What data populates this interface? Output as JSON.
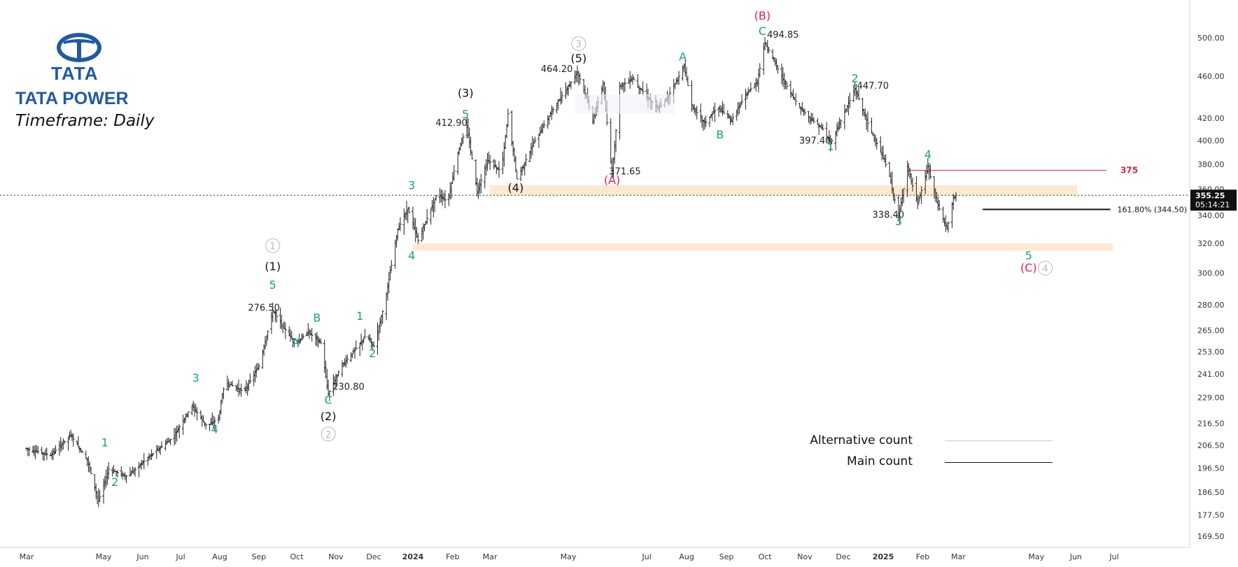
{
  "brand": {
    "logo_text": "TATA",
    "name": "TATA POWER",
    "timeframe": "Timeframe: Daily"
  },
  "colors": {
    "wave_teal": "#1a9c8c",
    "wave_red": "#e0224a",
    "wave_black": "#111111",
    "wave_grey": "#b8b8b8",
    "zone_fill": "#fde9d0",
    "resistance_red": "#e0224a",
    "bars": "#222222",
    "logo_blue": "#1f5aa6"
  },
  "legend": {
    "alternative": {
      "label": "Alternative count",
      "color": "#cccccc"
    },
    "main": {
      "label": "Main count",
      "color": "#111111"
    }
  },
  "chart_data": {
    "type": "ohlc",
    "title": "",
    "scale": "log",
    "y_axis": {
      "side": "right",
      "ticks": [
        169.5,
        177.5,
        186.5,
        196.5,
        206.5,
        216.5,
        229.0,
        241.0,
        253.0,
        265.0,
        280.0,
        300.0,
        320.0,
        340.0,
        360.0,
        380.0,
        400.0,
        420.0,
        460.0,
        500.0
      ],
      "tick_labels": [
        "169.50",
        "177.50",
        "186.50",
        "196.50",
        "206.50",
        "216.50",
        "229.00",
        "241.00",
        "253.00",
        "265.00",
        "280.00",
        "300.00",
        "320.00",
        "340.00",
        "360.00",
        "380.00",
        "400.00",
        "420.00",
        "460.00",
        "500.00"
      ],
      "range": [
        164,
        530
      ]
    },
    "x_axis": {
      "labels": [
        "Mar",
        "May",
        "Jun",
        "Jul",
        "Aug",
        "Sep",
        "Oct",
        "Nov",
        "Dec",
        "2024",
        "Feb",
        "Mar",
        "May",
        "Jul",
        "Aug",
        "Sep",
        "Oct",
        "Nov",
        "Dec",
        "2025",
        "Feb",
        "Mar",
        "May",
        "Jun",
        "Jul"
      ],
      "bold_labels": [
        "2024",
        "2025"
      ]
    },
    "last_price": {
      "value": "355.25",
      "countdown": "05:14:21",
      "price": 355.25
    },
    "price_path": [
      [
        "2023-03-01",
        205
      ],
      [
        "2023-03-20",
        202
      ],
      [
        "2023-04-05",
        211
      ],
      [
        "2023-04-18",
        200
      ],
      [
        "2023-04-27",
        183
      ],
      [
        "2023-05-05",
        196
      ],
      [
        "2023-05-20",
        193
      ],
      [
        "2023-06-05",
        201
      ],
      [
        "2023-06-25",
        210
      ],
      [
        "2023-07-10",
        225
      ],
      [
        "2023-07-22",
        215
      ],
      [
        "2023-07-31",
        219
      ],
      [
        "2023-08-05",
        237
      ],
      [
        "2023-08-20",
        232
      ],
      [
        "2023-09-01",
        245
      ],
      [
        "2023-09-12",
        276.5
      ],
      [
        "2023-09-25",
        262
      ],
      [
        "2023-10-01",
        258
      ],
      [
        "2023-10-10",
        264
      ],
      [
        "2023-10-20",
        258
      ],
      [
        "2023-10-26",
        230.8
      ],
      [
        "2023-11-05",
        245
      ],
      [
        "2023-11-15",
        253
      ],
      [
        "2023-11-25",
        262
      ],
      [
        "2023-12-01",
        256
      ],
      [
        "2023-12-10",
        282
      ],
      [
        "2023-12-20",
        330
      ],
      [
        "2023-12-28",
        345
      ],
      [
        "2024-01-05",
        322
      ],
      [
        "2024-01-20",
        357
      ],
      [
        "2024-01-28",
        350
      ],
      [
        "2024-02-05",
        390
      ],
      [
        "2024-02-12",
        412.9
      ],
      [
        "2024-02-20",
        358
      ],
      [
        "2024-02-28",
        383
      ],
      [
        "2024-03-10",
        374
      ],
      [
        "2024-03-15",
        424
      ],
      [
        "2024-03-22",
        368
      ],
      [
        "2024-04-05",
        400
      ],
      [
        "2024-04-20",
        430
      ],
      [
        "2024-05-01",
        450
      ],
      [
        "2024-05-08",
        464.2
      ],
      [
        "2024-05-15",
        440
      ],
      [
        "2024-05-20",
        418
      ],
      [
        "2024-05-28",
        452
      ],
      [
        "2024-06-04",
        371.65
      ],
      [
        "2024-06-10",
        450
      ],
      [
        "2024-06-20",
        458
      ],
      [
        "2024-07-01",
        440
      ],
      [
        "2024-07-10",
        428
      ],
      [
        "2024-07-20",
        445
      ],
      [
        "2024-07-30",
        470
      ],
      [
        "2024-08-05",
        432
      ],
      [
        "2024-08-15",
        415
      ],
      [
        "2024-08-25",
        430
      ],
      [
        "2024-09-05",
        418
      ],
      [
        "2024-09-15",
        440
      ],
      [
        "2024-09-25",
        455
      ],
      [
        "2024-10-01",
        494.85
      ],
      [
        "2024-10-10",
        470
      ],
      [
        "2024-10-20",
        445
      ],
      [
        "2024-10-28",
        430
      ],
      [
        "2024-11-05",
        420
      ],
      [
        "2024-11-15",
        410
      ],
      [
        "2024-11-21",
        397.4
      ],
      [
        "2024-11-30",
        420
      ],
      [
        "2024-12-10",
        447.7
      ],
      [
        "2024-12-20",
        415
      ],
      [
        "2024-12-28",
        395
      ],
      [
        "2025-01-05",
        375
      ],
      [
        "2025-01-13",
        338.4
      ],
      [
        "2025-01-20",
        378
      ],
      [
        "2025-01-28",
        348
      ],
      [
        "2025-02-05",
        378
      ],
      [
        "2025-02-12",
        350
      ],
      [
        "2025-02-20",
        330
      ],
      [
        "2025-02-25",
        353
      ],
      [
        "2025-02-27",
        355.25
      ]
    ],
    "zones": [
      {
        "from": "2024-03-01",
        "to": "2025-06-02",
        "low": 355,
        "high": 363
      },
      {
        "from": "2024-01-01",
        "to": "2025-06-30",
        "low": 315,
        "high": 320
      }
    ],
    "resistance": {
      "value": 375,
      "label": "375",
      "from": "2025-01-20",
      "to": "2025-06-25"
    },
    "fib_target": {
      "value": 344.5,
      "label": "161.80% (344.50)",
      "from": "2025-03-20",
      "to": "2025-06-28"
    },
    "price_labels": [
      {
        "text": "276.50",
        "date": "2023-09-05",
        "price": 276.5
      },
      {
        "text": "230.80",
        "date": "2023-11-11",
        "price": 233
      },
      {
        "text": "412.90",
        "date": "2024-01-31",
        "price": 412.9
      },
      {
        "text": "464.20",
        "date": "2024-04-22",
        "price": 464.2
      },
      {
        "text": "371.65",
        "date": "2024-06-14",
        "price": 371.65
      },
      {
        "text": "494.85",
        "date": "2024-10-15",
        "price": 500
      },
      {
        "text": "397.40",
        "date": "2024-11-09",
        "price": 397.4
      },
      {
        "text": "447.70",
        "date": "2024-12-24",
        "price": 447.7
      },
      {
        "text": "338.40",
        "date": "2025-01-05",
        "price": 338.4
      }
    ],
    "wave_labels": [
      {
        "text": "1",
        "count": "main",
        "color": "teal",
        "date": "2023-05-02",
        "price": 206
      },
      {
        "text": "2",
        "count": "main",
        "color": "teal",
        "date": "2023-05-10",
        "price": 189
      },
      {
        "text": "3",
        "count": "main",
        "color": "teal",
        "date": "2023-07-13",
        "price": 237
      },
      {
        "text": "4",
        "count": "main",
        "color": "teal",
        "date": "2023-07-28",
        "price": 212
      },
      {
        "text": "5",
        "count": "main",
        "color": "teal",
        "date": "2023-09-12",
        "price": 290
      },
      {
        "text": "(1)",
        "count": "main",
        "color": "black",
        "date": "2023-09-12",
        "price": 302
      },
      {
        "text": "1",
        "count": "alternative",
        "color": "grey",
        "date": "2023-09-12",
        "price": 316
      },
      {
        "text": "A",
        "count": "main",
        "color": "teal",
        "date": "2023-09-30",
        "price": 256
      },
      {
        "text": "B",
        "count": "main",
        "color": "teal",
        "date": "2023-10-17",
        "price": 270
      },
      {
        "text": "C",
        "count": "main",
        "color": "teal",
        "date": "2023-10-26",
        "price": 226
      },
      {
        "text": "(2)",
        "count": "main",
        "color": "black",
        "date": "2023-10-26",
        "price": 218
      },
      {
        "text": "2",
        "count": "alternative",
        "color": "grey",
        "date": "2023-10-26",
        "price": 210
      },
      {
        "text": "1",
        "count": "main",
        "color": "teal",
        "date": "2023-11-20",
        "price": 271
      },
      {
        "text": "2",
        "count": "main",
        "color": "teal",
        "date": "2023-11-30",
        "price": 250
      },
      {
        "text": "3",
        "count": "main",
        "color": "teal",
        "date": "2023-12-31",
        "price": 360
      },
      {
        "text": "4",
        "count": "main",
        "color": "teal",
        "date": "2023-12-31",
        "price": 309
      },
      {
        "text": "5",
        "count": "main",
        "color": "teal",
        "date": "2024-02-11",
        "price": 420
      },
      {
        "text": "(3)",
        "count": "main",
        "color": "black",
        "date": "2024-02-11",
        "price": 440
      },
      {
        "text": "(4)",
        "count": "main",
        "color": "black",
        "date": "2024-03-21",
        "price": 358
      },
      {
        "text": "(5)",
        "count": "main",
        "color": "black",
        "date": "2024-05-09",
        "price": 474
      },
      {
        "text": "3",
        "count": "alternative",
        "color": "grey",
        "date": "2024-05-09",
        "price": 490
      },
      {
        "text": "(A)",
        "count": "main",
        "color": "red",
        "date": "2024-06-04",
        "price": 364
      },
      {
        "text": "A",
        "count": "main",
        "color": "teal",
        "date": "2024-07-29",
        "price": 476
      },
      {
        "text": "B",
        "count": "main",
        "color": "teal",
        "date": "2024-08-27",
        "price": 402
      },
      {
        "text": "C",
        "count": "main",
        "color": "teal",
        "date": "2024-09-29",
        "price": 503
      },
      {
        "text": "(B)",
        "count": "main",
        "color": "red",
        "date": "2024-09-29",
        "price": 520
      },
      {
        "text": "1",
        "count": "main",
        "color": "teal",
        "date": "2024-11-21",
        "price": 392
      },
      {
        "text": "2",
        "count": "main",
        "color": "teal",
        "date": "2024-12-10",
        "price": 454
      },
      {
        "text": "3",
        "count": "main",
        "color": "teal",
        "date": "2025-01-13",
        "price": 333
      },
      {
        "text": "4",
        "count": "main",
        "color": "teal",
        "date": "2025-02-05",
        "price": 385
      },
      {
        "text": "5",
        "count": "main",
        "color": "teal",
        "date": "2025-04-25",
        "price": 309
      },
      {
        "text": "(C)",
        "count": "main",
        "color": "red",
        "date": "2025-04-25",
        "price": 301
      },
      {
        "text": "4",
        "count": "alternative",
        "color": "grey",
        "date": "2025-05-08",
        "price": 301
      }
    ]
  }
}
